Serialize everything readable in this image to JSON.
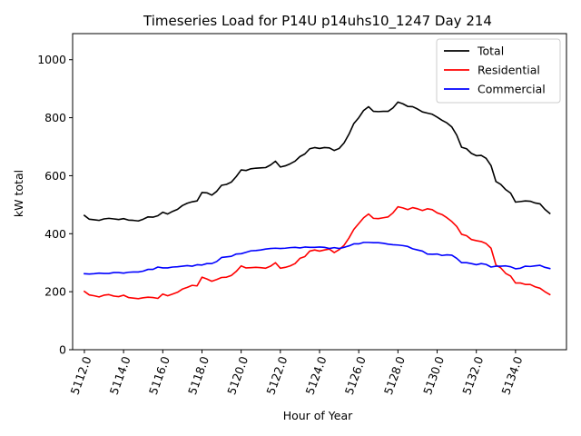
{
  "chart_data": {
    "type": "line",
    "title": "Timeseries Load for P14U p14uhs10_1247  Day 214",
    "xlabel": "Hour of Year",
    "ylabel": "kW total",
    "xlim": [
      5111.4,
      5136.6
    ],
    "ylim": [
      0,
      1090
    ],
    "xticks": [
      5112,
      5114,
      5116,
      5118,
      5120,
      5122,
      5124,
      5126,
      5128,
      5130,
      5132,
      5134
    ],
    "xtick_labels": [
      "5112.0",
      "5114.0",
      "5116.0",
      "5118.0",
      "5120.0",
      "5122.0",
      "5124.0",
      "5126.0",
      "5128.0",
      "5130.0",
      "5132.0",
      "5134.0"
    ],
    "yticks": [
      0,
      200,
      400,
      600,
      800,
      1000
    ],
    "ytick_labels": [
      "0",
      "200",
      "400",
      "600",
      "800",
      "1000"
    ],
    "legend_position": "top-right",
    "x_start": 5112,
    "x_step": 0.25,
    "series": [
      {
        "name": "Total",
        "color": "#000000",
        "values": [
          463,
          450,
          448,
          446,
          451,
          453,
          451,
          449,
          452,
          447,
          446,
          444,
          450,
          458,
          457,
          462,
          474,
          468,
          477,
          484,
          497,
          505,
          510,
          513,
          542,
          541,
          533,
          546,
          567,
          570,
          578,
          597,
          620,
          618,
          624,
          626,
          627,
          628,
          637,
          650,
          630,
          634,
          641,
          650,
          666,
          675,
          693,
          697,
          694,
          697,
          696,
          687,
          694,
          713,
          743,
          780,
          800,
          825,
          838,
          822,
          821,
          822,
          822,
          834,
          854,
          848,
          839,
          838,
          830,
          820,
          816,
          812,
          802,
          791,
          782,
          768,
          740,
          698,
          693,
          677,
          669,
          670,
          660,
          635,
          580,
          570,
          552,
          540,
          509,
          511,
          513,
          512,
          506,
          503,
          484,
          470
        ]
      },
      {
        "name": "Residential",
        "color": "#ff0000",
        "values": [
          201,
          189,
          186,
          182,
          188,
          190,
          185,
          183,
          188,
          180,
          178,
          176,
          179,
          181,
          180,
          177,
          192,
          186,
          192,
          198,
          209,
          215,
          222,
          220,
          250,
          244,
          236,
          242,
          249,
          250,
          256,
          270,
          289,
          282,
          283,
          284,
          283,
          281,
          288,
          300,
          281,
          284,
          289,
          297,
          315,
          321,
          340,
          344,
          340,
          344,
          347,
          335,
          345,
          360,
          385,
          415,
          435,
          455,
          468,
          453,
          452,
          455,
          458,
          472,
          493,
          489,
          483,
          490,
          486,
          480,
          486,
          483,
          472,
          466,
          455,
          442,
          425,
          398,
          393,
          380,
          376,
          373,
          366,
          350,
          292,
          282,
          263,
          254,
          230,
          230,
          225,
          225,
          217,
          212,
          200,
          190
        ]
      },
      {
        "name": "Commercial",
        "color": "#0000ff",
        "values": [
          262,
          261,
          262,
          264,
          263,
          263,
          266,
          266,
          264,
          267,
          268,
          268,
          271,
          277,
          277,
          285,
          282,
          282,
          285,
          286,
          288,
          290,
          288,
          293,
          292,
          297,
          297,
          304,
          318,
          320,
          322,
          330,
          331,
          336,
          341,
          342,
          344,
          347,
          349,
          350,
          349,
          350,
          352,
          353,
          351,
          354,
          353,
          353,
          354,
          353,
          349,
          352,
          349,
          353,
          358,
          365,
          365,
          370,
          370,
          369,
          369,
          367,
          364,
          362,
          361,
          359,
          356,
          348,
          344,
          340,
          330,
          329,
          330,
          325,
          327,
          326,
          315,
          300,
          300,
          297,
          293,
          297,
          294,
          285,
          288,
          288,
          289,
          286,
          279,
          281,
          288,
          287,
          289,
          291,
          284,
          280
        ]
      }
    ]
  }
}
